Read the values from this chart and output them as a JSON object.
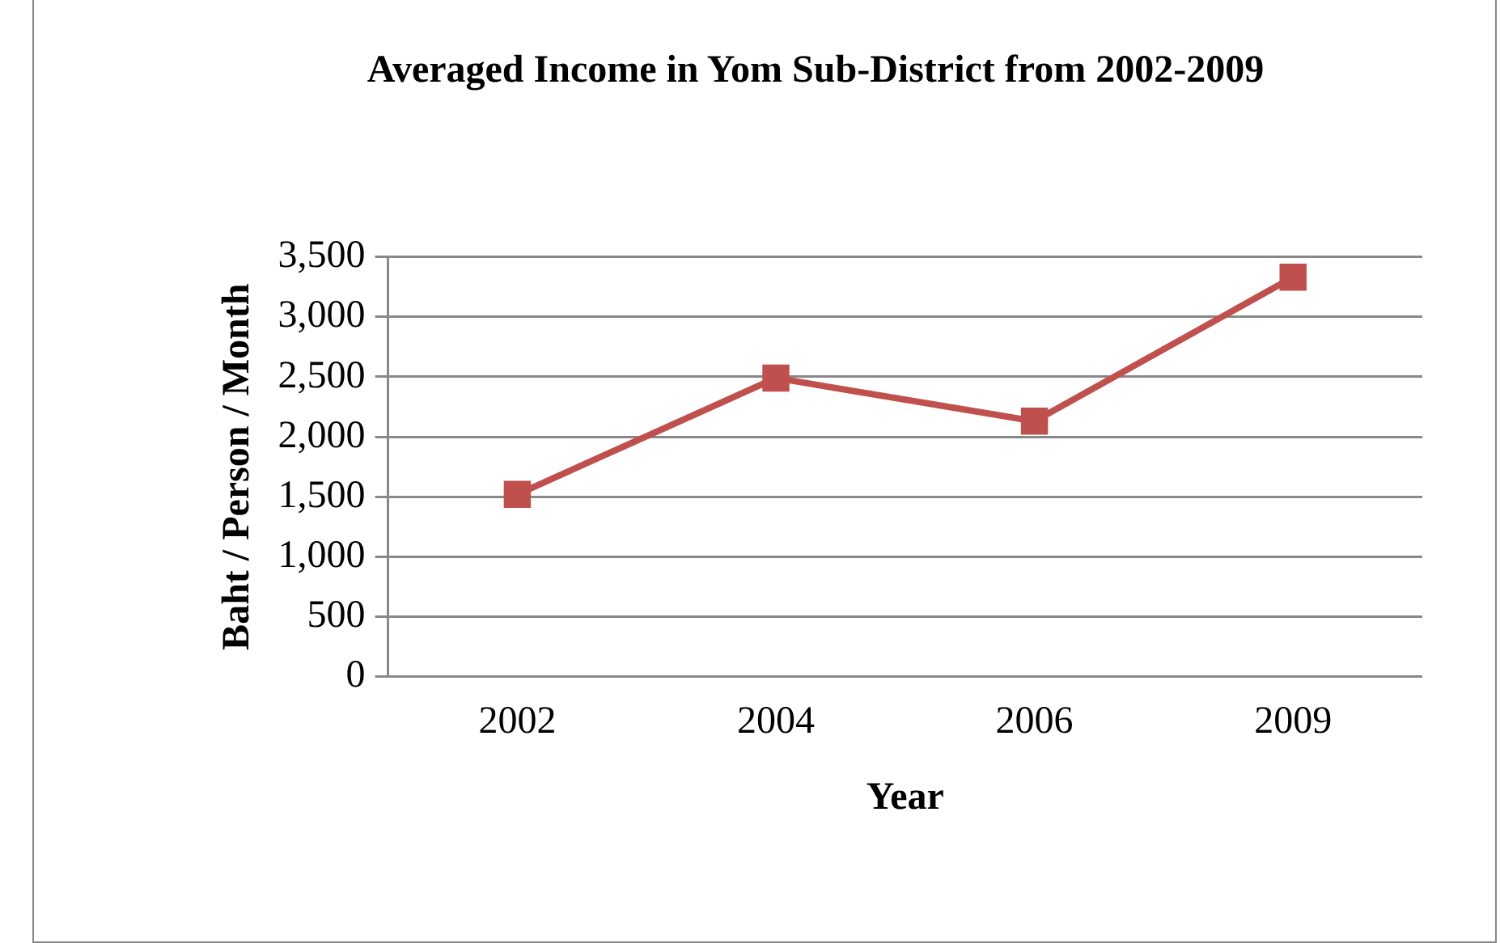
{
  "chart_data": {
    "type": "line",
    "title": "Averaged Income in Yom Sub-District from 2002-2009",
    "xlabel": "Year",
    "ylabel": "Baht / Person / Month",
    "categories": [
      "2002",
      "2004",
      "2006",
      "2009"
    ],
    "series": [
      {
        "color": "#c0504d",
        "values": [
          1520,
          2490,
          2130,
          3330
        ]
      }
    ],
    "ylim": [
      0,
      3500
    ],
    "yticks": [
      0,
      500,
      {
        "value": 1000,
        "label": "1,000"
      },
      {
        "value": 1500,
        "label": "1,500"
      },
      {
        "value": 2000,
        "label": "2,000"
      },
      {
        "value": 2500,
        "label": "2,500"
      },
      {
        "value": 3000,
        "label": "3,000"
      },
      {
        "value": 3500,
        "label": "3,500"
      }
    ],
    "grid": "y",
    "legend": false,
    "marker": "square",
    "line_style": "solid"
  }
}
